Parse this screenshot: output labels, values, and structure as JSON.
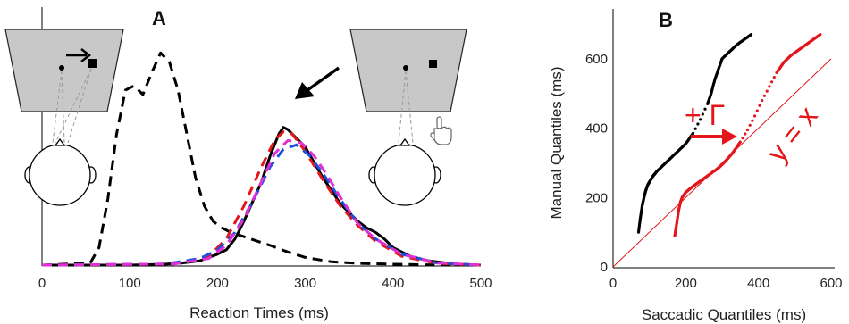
{
  "chart_data": [
    {
      "type": "line",
      "panel_label": "A",
      "xlabel": "Reaction Times (ms)",
      "ylabel": "",
      "xlim": [
        0,
        500
      ],
      "xticks": [
        0,
        100,
        200,
        300,
        400,
        500
      ],
      "grid": false,
      "legend": "none",
      "series": [
        {
          "style": "dashed",
          "color": "#000000",
          "x": [
            0,
            55,
            65,
            75,
            85,
            95,
            105,
            115,
            125,
            135,
            145,
            155,
            165,
            175,
            185,
            195,
            205,
            215,
            230,
            245,
            260,
            280,
            300,
            330,
            360,
            400,
            450,
            500
          ],
          "y": [
            0,
            0.01,
            0.08,
            0.3,
            0.6,
            0.8,
            0.82,
            0.78,
            0.88,
            0.97,
            0.93,
            0.8,
            0.6,
            0.4,
            0.27,
            0.2,
            0.17,
            0.15,
            0.13,
            0.11,
            0.09,
            0.06,
            0.035,
            0.015,
            0.008,
            0.004,
            0.001,
            0
          ]
        },
        {
          "style": "solid",
          "color": "#000000",
          "x": [
            0,
            100,
            140,
            160,
            180,
            200,
            210,
            220,
            230,
            240,
            250,
            260,
            270,
            275,
            280,
            290,
            300,
            310,
            320,
            330,
            340,
            350,
            360,
            370,
            380,
            390,
            400,
            420,
            440,
            470,
            500
          ],
          "y": [
            0,
            0,
            0.004,
            0.01,
            0.02,
            0.05,
            0.07,
            0.12,
            0.2,
            0.29,
            0.38,
            0.5,
            0.6,
            0.63,
            0.62,
            0.58,
            0.54,
            0.47,
            0.4,
            0.34,
            0.28,
            0.24,
            0.2,
            0.17,
            0.15,
            0.12,
            0.08,
            0.04,
            0.02,
            0.005,
            0
          ]
        },
        {
          "style": "dashed",
          "color": "#e4161b",
          "x": [
            0,
            150,
            190,
            210,
            230,
            250,
            265,
            275,
            285,
            300,
            320,
            340,
            360,
            380,
            410,
            450,
            500
          ],
          "y": [
            0,
            0.005,
            0.04,
            0.12,
            0.27,
            0.45,
            0.57,
            0.61,
            0.6,
            0.52,
            0.39,
            0.27,
            0.18,
            0.11,
            0.04,
            0.008,
            0
          ]
        },
        {
          "style": "dashed",
          "color": "#1f4fe0",
          "x": [
            0,
            140,
            180,
            200,
            220,
            240,
            260,
            275,
            290,
            305,
            320,
            340,
            360,
            380,
            410,
            450,
            500
          ],
          "y": [
            0,
            0.005,
            0.03,
            0.07,
            0.15,
            0.29,
            0.45,
            0.53,
            0.55,
            0.5,
            0.42,
            0.3,
            0.19,
            0.12,
            0.05,
            0.01,
            0
          ]
        },
        {
          "style": "dashed",
          "color": "#e22fd4",
          "x": [
            0,
            150,
            190,
            210,
            230,
            250,
            265,
            280,
            295,
            310,
            325,
            340,
            360,
            380,
            410,
            450,
            500
          ],
          "y": [
            0,
            0.005,
            0.03,
            0.09,
            0.21,
            0.38,
            0.51,
            0.57,
            0.56,
            0.5,
            0.41,
            0.31,
            0.19,
            0.12,
            0.05,
            0.01,
            0
          ]
        }
      ]
    },
    {
      "type": "scatter",
      "panel_label": "B",
      "xlabel": "Saccadic Quantiles (ms)",
      "ylabel": "Manual Quantiles (ms)",
      "xlim": [
        0,
        600
      ],
      "ylim": [
        0,
        700
      ],
      "xticks": [
        0,
        200,
        400,
        600
      ],
      "yticks": [
        0,
        200,
        400,
        600
      ],
      "grid": false,
      "legend": "none",
      "reference_line": {
        "label": "y = x",
        "color": "#e4161b"
      },
      "annotation": {
        "text": "+ Γ",
        "color": "#e4161b"
      },
      "series": [
        {
          "color": "#000000",
          "x": [
            70,
            75,
            80,
            85,
            90,
            95,
            100,
            110,
            120,
            140,
            160,
            180,
            200,
            220,
            240,
            260,
            270,
            280,
            290,
            300,
            320,
            340,
            360,
            380
          ],
          "y": [
            100,
            140,
            175,
            200,
            220,
            235,
            245,
            262,
            275,
            295,
            315,
            335,
            355,
            385,
            425,
            470,
            500,
            540,
            570,
            600,
            620,
            640,
            655,
            670
          ]
        },
        {
          "color": "#e4161b",
          "x": [
            170,
            175,
            180,
            185,
            190,
            200,
            215,
            230,
            250,
            270,
            290,
            310,
            330,
            350,
            370,
            390,
            410,
            430,
            450,
            470,
            490,
            510,
            530,
            550,
            570
          ],
          "y": [
            90,
            125,
            160,
            185,
            200,
            215,
            228,
            240,
            255,
            270,
            285,
            305,
            330,
            360,
            395,
            435,
            480,
            520,
            560,
            590,
            610,
            625,
            640,
            655,
            670
          ]
        }
      ]
    }
  ]
}
